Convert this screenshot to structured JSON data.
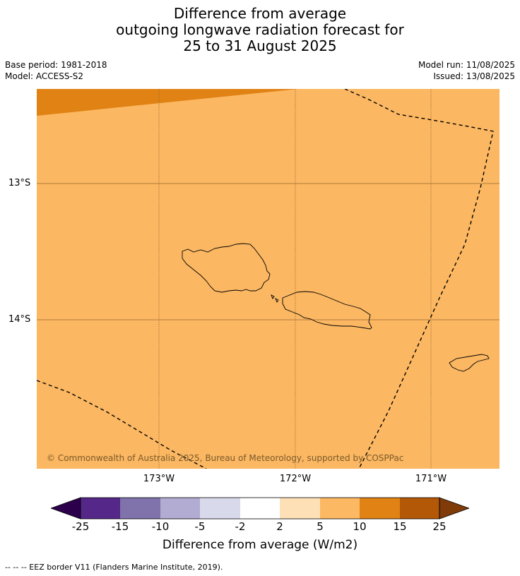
{
  "title": {
    "line1": "Difference from average",
    "line2": "outgoing longwave radiation forecast for",
    "line3": "25 to 31 August 2025"
  },
  "meta": {
    "base_period": "Base period: 1981-2018",
    "model": "Model: ACCESS-S2",
    "model_run": "Model run: 11/08/2025",
    "issued": "Issued: 13/08/2025"
  },
  "map": {
    "lat_labels": [
      "13°S",
      "14°S"
    ],
    "lon_labels": [
      "173°W",
      "172°W",
      "171°W"
    ],
    "copyright": "© Commonwealth of Australia 2025, Bureau of Meteorology, supported by COSPPac",
    "field_color": "#fbb762",
    "band_color": "#e08214"
  },
  "colorbar": {
    "label": "Difference from average (W/m2)",
    "ticks": [
      "-25",
      "-15",
      "-10",
      "-5",
      "-2",
      "2",
      "5",
      "10",
      "15",
      "25"
    ],
    "colors": [
      "#2d004b",
      "#542788",
      "#8073ac",
      "#b2abd2",
      "#d8daeb",
      "#ffffff",
      "#fee0b6",
      "#fdb863",
      "#e08214",
      "#b35806",
      "#7f3b08"
    ]
  },
  "footnote": "--  --  -- EEZ border V11 (Flanders Marine Institute, 2019)."
}
